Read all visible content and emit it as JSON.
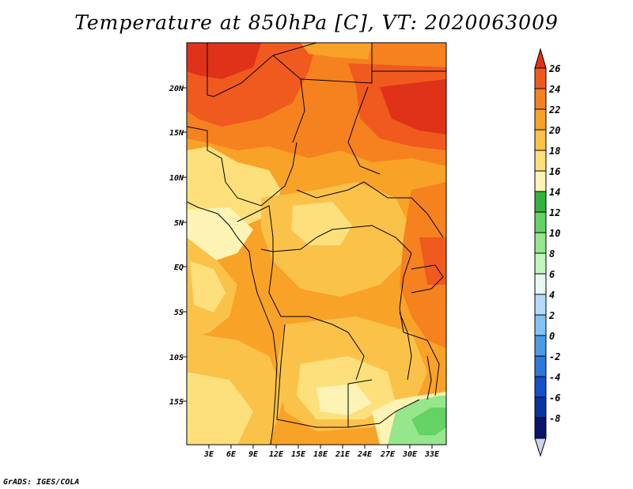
{
  "title": "Temperature at 850hPa [C], VT: 2020063009",
  "credit": "GrADS: IGES/COLA",
  "map": {
    "lat_labels": [
      "20N",
      "15N",
      "10N",
      "5N",
      "EQ",
      "5S",
      "10S",
      "15S"
    ],
    "lon_labels": [
      "3E",
      "6E",
      "9E",
      "12E",
      "15E",
      "18E",
      "21E",
      "24E",
      "27E",
      "30E",
      "33E"
    ]
  },
  "colorbar": {
    "levels": [
      "26",
      "24",
      "22",
      "20",
      "18",
      "16",
      "14",
      "12",
      "10",
      "8",
      "6",
      "4",
      "2",
      "0",
      "-2",
      "-4",
      "-6",
      "-8"
    ],
    "colors": [
      "#e03218",
      "#f05a1e",
      "#f5821e",
      "#f9a228",
      "#fbc24a",
      "#fde07c",
      "#fdf3b4",
      "#32b43c",
      "#64d264",
      "#96e68c",
      "#c3f5be",
      "#e6f8f0",
      "#b4dcfa",
      "#82c3f5",
      "#4b9be6",
      "#2d78dc",
      "#1450c8",
      "#0a32a0",
      "#08146e",
      "#d2d2f0"
    ]
  }
}
